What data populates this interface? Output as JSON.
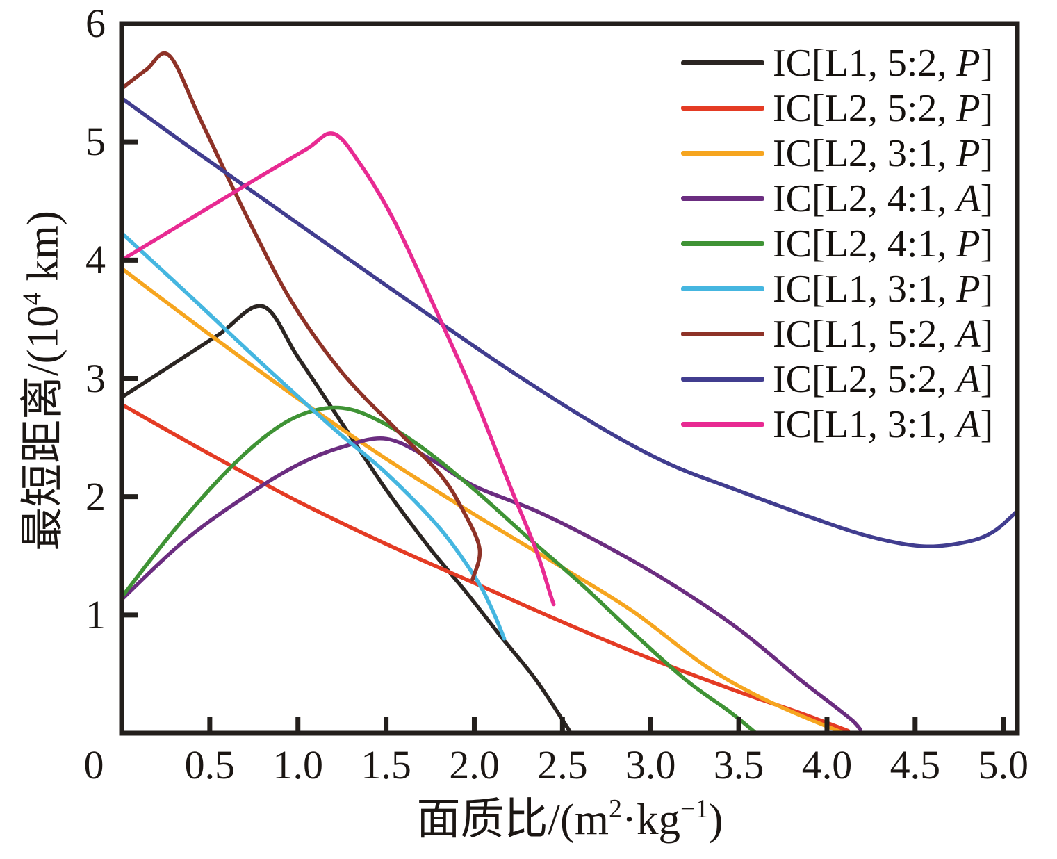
{
  "chart_data": {
    "type": "line",
    "title": "",
    "xlabel": "面质比/(m²·kg⁻¹)",
    "ylabel": "最短距离/(10⁴ km)",
    "xlabel_parts": {
      "pre": "面质比/(m",
      "sup1": "2",
      "mid": "·kg",
      "sup2": "−1",
      "post": ")"
    },
    "ylabel_parts": {
      "pre": "最短距离/(10",
      "sup": "4",
      "post": " km)"
    },
    "xlim": [
      0,
      5.08
    ],
    "ylim": [
      0,
      6
    ],
    "xticks": [
      0.5,
      1.0,
      1.5,
      2.0,
      2.5,
      3.0,
      3.5,
      4.0,
      4.5,
      5.0
    ],
    "xtick_labels": [
      "0.5",
      "1.0",
      "1.5",
      "2.0",
      "2.5",
      "3.0",
      "3.5",
      "4.0",
      "4.5",
      "5.0"
    ],
    "origin_label": "0",
    "yticks": [
      1,
      2,
      3,
      4,
      5,
      6
    ],
    "ytick_labels": [
      "1",
      "2",
      "3",
      "4",
      "5",
      "6"
    ],
    "grid": false,
    "legend_position": "upper right",
    "axis_color": "#231f1c",
    "series": [
      {
        "name": "IC[L1, 5:2, P]",
        "label_prefix": "IC[L1, 5:2, ",
        "label_variant": "P",
        "label_suffix": "]",
        "color": "#2b2522",
        "points": [
          [
            0,
            2.84
          ],
          [
            0.27,
            3.1
          ],
          [
            0.55,
            3.37
          ],
          [
            0.8,
            3.61
          ],
          [
            1.0,
            3.18
          ],
          [
            1.25,
            2.62
          ],
          [
            1.5,
            2.06
          ],
          [
            1.75,
            1.56
          ],
          [
            1.95,
            1.2
          ],
          [
            2.15,
            0.82
          ],
          [
            2.35,
            0.45
          ],
          [
            2.54,
            0.02
          ]
        ]
      },
      {
        "name": "IC[L2, 5:2, P]",
        "label_prefix": "IC[L2, 5:2, ",
        "label_variant": "P",
        "label_suffix": "]",
        "color": "#e43b24",
        "points": [
          [
            0,
            2.78
          ],
          [
            0.5,
            2.36
          ],
          [
            1.0,
            1.96
          ],
          [
            1.5,
            1.6
          ],
          [
            2.0,
            1.27
          ],
          [
            2.5,
            0.94
          ],
          [
            3.0,
            0.63
          ],
          [
            3.5,
            0.35
          ],
          [
            3.85,
            0.17
          ],
          [
            4.12,
            0.02
          ]
        ]
      },
      {
        "name": "IC[L2, 3:1, P]",
        "label_prefix": "IC[L2, 3:1, ",
        "label_variant": "P",
        "label_suffix": "]",
        "color": "#f6a51f",
        "points": [
          [
            0,
            3.93
          ],
          [
            0.5,
            3.37
          ],
          [
            1.0,
            2.83
          ],
          [
            1.5,
            2.32
          ],
          [
            2.0,
            1.85
          ],
          [
            2.5,
            1.4
          ],
          [
            2.9,
            1.03
          ],
          [
            3.3,
            0.58
          ],
          [
            3.6,
            0.32
          ],
          [
            3.85,
            0.15
          ],
          [
            4.08,
            0.01
          ]
        ]
      },
      {
        "name": "IC[L2, 4:1, A]",
        "label_prefix": "IC[L2, 4:1, ",
        "label_variant": "A",
        "label_suffix": "]",
        "color": "#6b2d80",
        "points": [
          [
            0,
            1.13
          ],
          [
            0.35,
            1.62
          ],
          [
            0.7,
            2.0
          ],
          [
            1.0,
            2.27
          ],
          [
            1.25,
            2.42
          ],
          [
            1.5,
            2.49
          ],
          [
            1.75,
            2.32
          ],
          [
            2.0,
            2.09
          ],
          [
            2.35,
            1.88
          ],
          [
            2.7,
            1.62
          ],
          [
            3.1,
            1.28
          ],
          [
            3.5,
            0.88
          ],
          [
            3.85,
            0.45
          ],
          [
            4.05,
            0.22
          ],
          [
            4.15,
            0.1
          ],
          [
            4.19,
            0.03
          ]
        ]
      },
      {
        "name": "IC[L2, 4:1, P]",
        "label_prefix": "IC[L2, 4:1, ",
        "label_variant": "P",
        "label_suffix": "]",
        "color": "#3f9335",
        "points": [
          [
            0,
            1.15
          ],
          [
            0.3,
            1.72
          ],
          [
            0.6,
            2.22
          ],
          [
            0.85,
            2.55
          ],
          [
            1.05,
            2.71
          ],
          [
            1.25,
            2.75
          ],
          [
            1.45,
            2.65
          ],
          [
            1.7,
            2.42
          ],
          [
            2.0,
            2.06
          ],
          [
            2.3,
            1.66
          ],
          [
            2.6,
            1.27
          ],
          [
            2.9,
            0.85
          ],
          [
            3.2,
            0.45
          ],
          [
            3.45,
            0.18
          ],
          [
            3.59,
            0.01
          ]
        ]
      },
      {
        "name": "IC[L1, 3:1, P]",
        "label_prefix": "IC[L1, 3:1, ",
        "label_variant": "P",
        "label_suffix": "]",
        "color": "#45b6e0",
        "points": [
          [
            0,
            4.23
          ],
          [
            0.4,
            3.68
          ],
          [
            0.8,
            3.12
          ],
          [
            1.2,
            2.58
          ],
          [
            1.5,
            2.2
          ],
          [
            1.8,
            1.74
          ],
          [
            2.0,
            1.33
          ],
          [
            2.1,
            1.05
          ],
          [
            2.17,
            0.8
          ]
        ]
      },
      {
        "name": "IC[L1, 5:2, A]",
        "label_prefix": "IC[L1, 5:2, ",
        "label_variant": "A",
        "label_suffix": "]",
        "color": "#8e3227",
        "points": [
          [
            0,
            5.45
          ],
          [
            0.14,
            5.61
          ],
          [
            0.27,
            5.73
          ],
          [
            0.45,
            5.18
          ],
          [
            0.7,
            4.4
          ],
          [
            0.96,
            3.66
          ],
          [
            1.25,
            3.05
          ],
          [
            1.55,
            2.58
          ],
          [
            1.8,
            2.2
          ],
          [
            1.93,
            1.9
          ],
          [
            2.03,
            1.56
          ],
          [
            1.99,
            1.3
          ]
        ]
      },
      {
        "name": "IC[L2, 5:2, A]",
        "label_prefix": "IC[L2, 5:2, ",
        "label_variant": "A",
        "label_suffix": "]",
        "color": "#413d8f",
        "points": [
          [
            0,
            5.37
          ],
          [
            0.4,
            4.94
          ],
          [
            0.8,
            4.52
          ],
          [
            1.2,
            4.1
          ],
          [
            1.7,
            3.58
          ],
          [
            2.2,
            3.07
          ],
          [
            2.7,
            2.6
          ],
          [
            3.1,
            2.28
          ],
          [
            3.5,
            2.05
          ],
          [
            3.9,
            1.83
          ],
          [
            4.25,
            1.66
          ],
          [
            4.55,
            1.58
          ],
          [
            4.8,
            1.62
          ],
          [
            4.95,
            1.71
          ],
          [
            5.08,
            1.88
          ]
        ]
      },
      {
        "name": "IC[L1, 3:1, A]",
        "label_prefix": "IC[L1, 3:1, ",
        "label_variant": "A",
        "label_suffix": "]",
        "color": "#e82a92",
        "points": [
          [
            0,
            4.0
          ],
          [
            0.4,
            4.36
          ],
          [
            0.8,
            4.72
          ],
          [
            1.05,
            4.94
          ],
          [
            1.2,
            5.07
          ],
          [
            1.35,
            4.82
          ],
          [
            1.55,
            4.32
          ],
          [
            1.8,
            3.52
          ],
          [
            2.0,
            2.85
          ],
          [
            2.2,
            2.1
          ],
          [
            2.35,
            1.55
          ],
          [
            2.43,
            1.18
          ],
          [
            2.45,
            1.09
          ]
        ]
      }
    ]
  }
}
